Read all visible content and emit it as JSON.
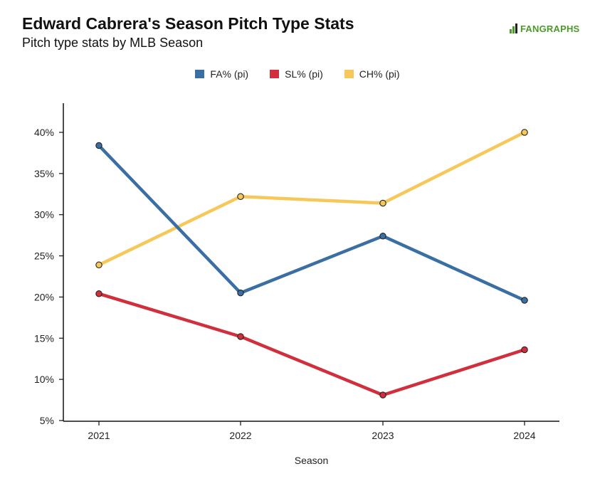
{
  "header": {
    "title": "Edward Cabrera's Season Pitch Type Stats",
    "subtitle": "Pitch type stats by MLB Season",
    "logo_text": "FANGRAPHS"
  },
  "colors": {
    "FA": "#3a6fa3",
    "SL": "#d12f3c",
    "CH": "#f6c85a",
    "logo": "#4c9a2a"
  },
  "chart_data": {
    "type": "line",
    "title": "Edward Cabrera's Season Pitch Type Stats",
    "subtitle": "Pitch type stats by MLB Season",
    "xlabel": "Season",
    "ylabel": "",
    "categories": [
      "2021",
      "2022",
      "2023",
      "2024"
    ],
    "y_ticks": [
      "5%",
      "10%",
      "15%",
      "20%",
      "25%",
      "30%",
      "35%",
      "40%"
    ],
    "ylim": [
      5,
      42
    ],
    "grid": false,
    "legend_position": "top-center",
    "series": [
      {
        "name": "FA% (pi)",
        "key": "FA",
        "values": [
          38.4,
          20.5,
          27.4,
          19.6
        ]
      },
      {
        "name": "SL% (pi)",
        "key": "SL",
        "values": [
          20.4,
          15.2,
          8.1,
          13.6
        ]
      },
      {
        "name": "CH% (pi)",
        "key": "CH",
        "values": [
          23.9,
          32.2,
          31.4,
          40.0
        ]
      }
    ]
  }
}
